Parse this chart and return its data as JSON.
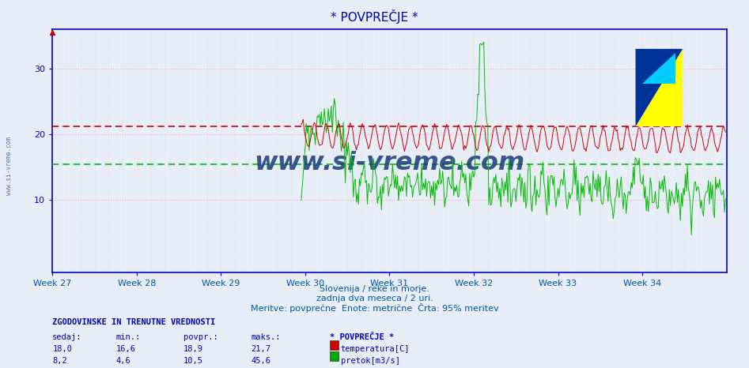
{
  "title": "* POVPREČJE *",
  "subtitle1": "Slovenija / reke in morje.",
  "subtitle2": "zadnja dva meseca / 2 uri.",
  "subtitle3": "Meritve: povprečne  Enote: metrične  Črta: 95% meritev",
  "xlabel_weeks": [
    "Week 27",
    "Week 28",
    "Week 29",
    "Week 30",
    "Week 31",
    "Week 32",
    "Week 33",
    "Week 34"
  ],
  "yticks": [
    10,
    20,
    30
  ],
  "ylim": [
    -1,
    36
  ],
  "xlim": [
    0,
    672
  ],
  "week_positions": [
    0,
    84,
    168,
    252,
    336,
    420,
    504,
    588
  ],
  "hline_red_y": 21.2,
  "hline_green_y": 15.5,
  "temp_color": "#cc0000",
  "flow_color": "#00bb00",
  "hline_red_color": "#cc0000",
  "hline_green_color": "#00bb00",
  "bg_color": "#e8eef8",
  "plot_bg_color": "#e8eef8",
  "grid_h_color": "#ffaaaa",
  "grid_v_color": "#ffcccc",
  "axis_color": "#0000cc",
  "text_color": "#0055aa",
  "title_color": "#0000aa",
  "watermark": "www.si-vreme.com",
  "watermark_color": "#1a3a7a",
  "left_label": "www.si-vreme.com",
  "stats_header": "ZGODOVINSKE IN TRENUTNE VREDNOSTI",
  "stats_cols": [
    "sedaj:",
    "min.:",
    "povpr.:",
    "maks.:",
    "* POVPREČJE *"
  ],
  "temp_stats": [
    "18,0",
    "16,6",
    "18,9",
    "21,7",
    "temperatura[C]"
  ],
  "flow_stats": [
    "8,2",
    "4,6",
    "10,5",
    "45,6",
    "pretok[m3/s]"
  ],
  "n_points": 672,
  "arrow_color": "#cc0000"
}
